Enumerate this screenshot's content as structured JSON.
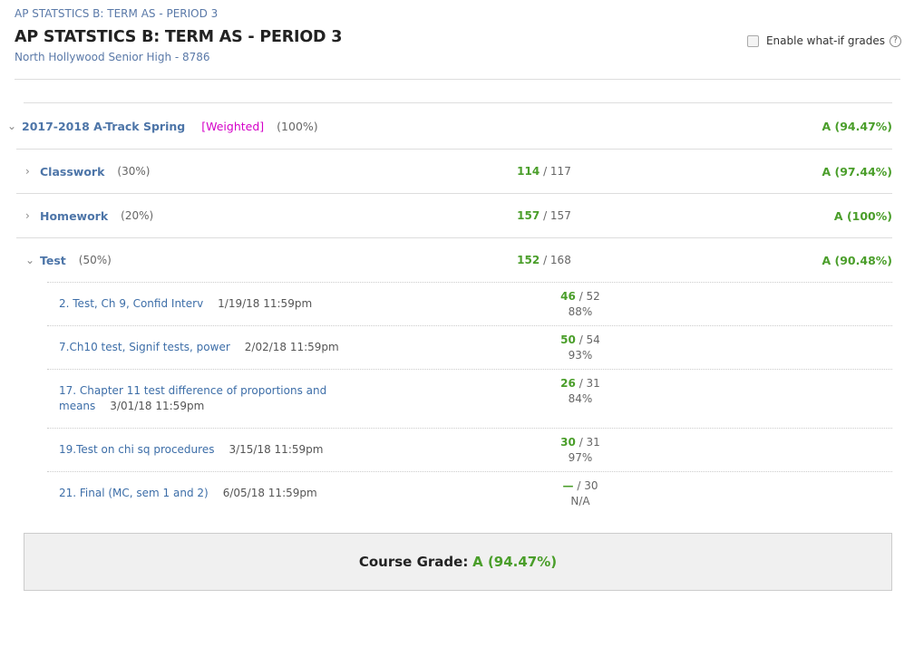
{
  "header": {
    "breadcrumb": "AP STATSTICS B: TERM AS - PERIOD 3",
    "title": "AP STATSTICS B: TERM AS - PERIOD 3",
    "school": "North Hollywood Senior High - 8786",
    "whatif_label": "Enable what-if grades",
    "help": "?"
  },
  "term": {
    "name": "2017-2018 A-Track Spring",
    "weighted": "[Weighted]",
    "weight": "(100%)",
    "grade": "A (94.47%)"
  },
  "categories": [
    {
      "name": "Classwork",
      "weight": "(30%)",
      "earned": "114",
      "total": "/ 117",
      "grade": "A (97.44%)",
      "expanded": false
    },
    {
      "name": "Homework",
      "weight": "(20%)",
      "earned": "157",
      "total": "/ 157",
      "grade": "A (100%)",
      "expanded": false
    },
    {
      "name": "Test",
      "weight": "(50%)",
      "earned": "152",
      "total": "/ 168",
      "grade": "A (90.48%)",
      "expanded": true
    }
  ],
  "items": [
    {
      "name": "2. Test, Ch 9, Confid Interv",
      "due": "1/19/18 11:59pm",
      "earned": "46",
      "total": "/ 52",
      "pct": "88%"
    },
    {
      "name": "7.Ch10 test, Signif tests, power",
      "due": "2/02/18 11:59pm",
      "earned": "50",
      "total": "/ 54",
      "pct": "93%"
    },
    {
      "name": "17. Chapter 11 test difference of proportions and means",
      "due": "3/01/18 11:59pm",
      "earned": "26",
      "total": "/ 31",
      "pct": "84%"
    },
    {
      "name": "19.Test on chi sq procedures",
      "due": "3/15/18 11:59pm",
      "earned": "30",
      "total": "/ 31",
      "pct": "97%"
    },
    {
      "name": "21. Final (MC, sem 1 and 2)",
      "due": "6/05/18 11:59pm",
      "earned": "—",
      "total": "/ 30",
      "pct": "N/A"
    }
  ],
  "course_grade": {
    "label": "Course Grade:",
    "value": "A (94.47%)"
  },
  "colors": {
    "link": "#3d6ea8",
    "grade": "#4a9e2a",
    "weighted": "#d400c8"
  }
}
